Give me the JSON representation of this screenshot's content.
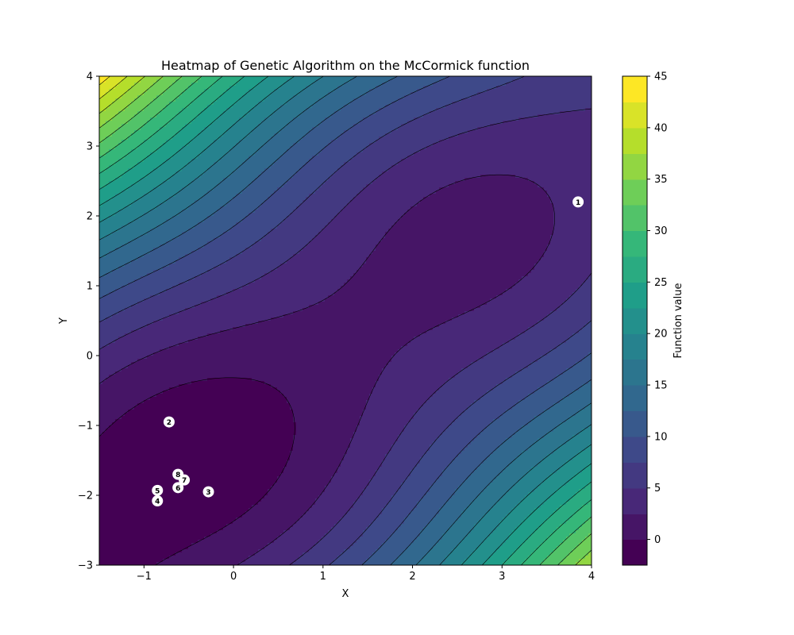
{
  "chart_data": {
    "type": "heatmap",
    "title": "Heatmap of Genetic Algorithm on the McCormick function",
    "xlabel": "X",
    "ylabel": "Y",
    "xlim": [
      -1.5,
      4
    ],
    "ylim": [
      -3,
      4
    ],
    "x_ticks": [
      -1,
      0,
      1,
      2,
      3,
      4
    ],
    "x_tick_labels": [
      "−1",
      "0",
      "1",
      "2",
      "3",
      "4"
    ],
    "y_ticks": [
      -3,
      -2,
      -1,
      0,
      1,
      2,
      3,
      4
    ],
    "y_tick_labels": [
      "−3",
      "−2",
      "−1",
      "0",
      "1",
      "2",
      "3",
      "4"
    ],
    "function": "McCormick",
    "contour_levels": [
      -2.5,
      0,
      2.5,
      5,
      7.5,
      10,
      12.5,
      15,
      17.5,
      20,
      22.5,
      25,
      27.5,
      30,
      32.5,
      35,
      37.5,
      40,
      42.5,
      45
    ],
    "colormap": "viridis",
    "colormap_stops": [
      "#440154",
      "#482878",
      "#3e4989",
      "#31688e",
      "#26828e",
      "#1f9e89",
      "#35b779",
      "#6ece58",
      "#b5de2b",
      "#fde725"
    ],
    "colorbar": {
      "label": "Function value",
      "ticks": [
        0,
        5,
        10,
        15,
        20,
        25,
        30,
        35,
        40,
        45
      ],
      "tick_labels": [
        "0",
        "5",
        "10",
        "15",
        "20",
        "25",
        "30",
        "35",
        "40",
        "45"
      ]
    },
    "points": [
      {
        "label": "1",
        "x": 3.85,
        "y": 2.2
      },
      {
        "label": "2",
        "x": -0.72,
        "y": -0.95
      },
      {
        "label": "3",
        "x": -0.28,
        "y": -1.95
      },
      {
        "label": "4",
        "x": -0.85,
        "y": -2.08
      },
      {
        "label": "5",
        "x": -0.85,
        "y": -1.93
      },
      {
        "label": "6",
        "x": -0.62,
        "y": -1.89
      },
      {
        "label": "7",
        "x": -0.55,
        "y": -1.78
      },
      {
        "label": "8",
        "x": -0.62,
        "y": -1.7
      }
    ],
    "grid": false
  }
}
